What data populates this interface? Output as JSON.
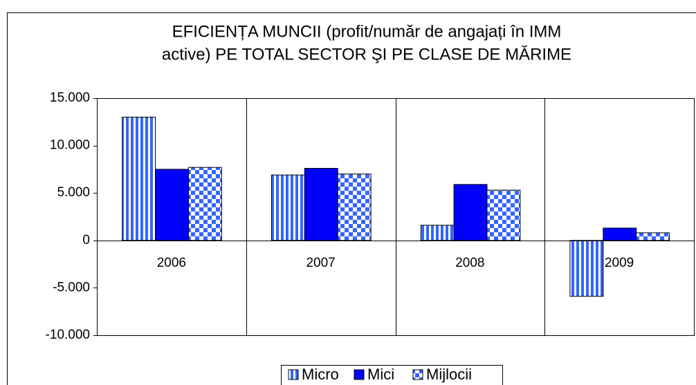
{
  "chart_data": {
    "type": "bar",
    "title": [
      "EFICIENȚA MUNCII (profit/număr de angajați în IMM",
      "active) PE TOTAL SECTOR ŞI PE CLASE DE MĂRIME"
    ],
    "categories": [
      "2006",
      "2007",
      "2008",
      "2009"
    ],
    "series": [
      {
        "name": "Micro",
        "color": "#3366ff",
        "pattern": "vertical-stripes",
        "values": [
          13000,
          6900,
          1600,
          -5900
        ]
      },
      {
        "name": "Mici",
        "color": "#0000ff",
        "pattern": "solid",
        "values": [
          7500,
          7600,
          5900,
          1300
        ]
      },
      {
        "name": "Mijlocii",
        "color": "#3366ff",
        "pattern": "checker",
        "values": [
          7700,
          7000,
          5300,
          800
        ]
      }
    ],
    "ylim": [
      -10000,
      15000
    ],
    "yticks": [
      {
        "value": -10000,
        "label": "-10.000"
      },
      {
        "value": -5000,
        "label": "-5.000"
      },
      0,
      {
        "value": 5000,
        "label": "5.000"
      },
      {
        "value": 10000,
        "label": "10.000"
      },
      {
        "value": 15000,
        "label": "15.000"
      }
    ],
    "legend": "bottom"
  }
}
